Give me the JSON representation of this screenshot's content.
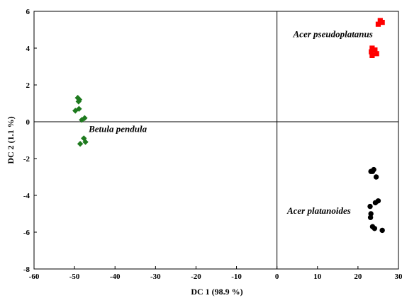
{
  "chart_data": {
    "type": "scatter",
    "xlabel": "DC 1 (98.9 %)",
    "ylabel": "DC 2 (1.1 %)",
    "xlim": [
      -60,
      30
    ],
    "ylim": [
      -8,
      6
    ],
    "xticks": [
      -60,
      -50,
      -40,
      -30,
      -20,
      -10,
      0,
      10,
      20,
      30
    ],
    "yticks": [
      -8,
      -6,
      -4,
      -2,
      0,
      2,
      4,
      6
    ],
    "grid": false,
    "reference_lines": {
      "x": 0,
      "y": 0
    },
    "series": [
      {
        "name": "Betula pendula",
        "marker": "diamond",
        "color": "#1e7a1e",
        "points": [
          [
            -49.2,
            1.3
          ],
          [
            -48.8,
            1.2
          ],
          [
            -49.0,
            1.1
          ],
          [
            -48.9,
            0.7
          ],
          [
            -49.8,
            0.6
          ],
          [
            -47.5,
            0.2
          ],
          [
            -48.2,
            0.1
          ],
          [
            -47.7,
            -0.9
          ],
          [
            -47.3,
            -1.1
          ],
          [
            -48.6,
            -1.2
          ]
        ]
      },
      {
        "name": "Acer pseudoplatanus",
        "marker": "square",
        "color": "#ff0000",
        "points": [
          [
            25.5,
            5.5
          ],
          [
            26.0,
            5.4
          ],
          [
            25.0,
            5.3
          ],
          [
            23.5,
            4.0
          ],
          [
            24.2,
            3.9
          ],
          [
            23.3,
            3.8
          ],
          [
            24.6,
            3.7
          ],
          [
            23.5,
            3.6
          ]
        ]
      },
      {
        "name": "Acer platanoides",
        "marker": "circle",
        "color": "#000000",
        "points": [
          [
            23.2,
            -2.7
          ],
          [
            23.9,
            -2.6
          ],
          [
            23.6,
            -2.7
          ],
          [
            24.5,
            -3.0
          ],
          [
            25.0,
            -4.3
          ],
          [
            24.3,
            -4.4
          ],
          [
            23.0,
            -4.6
          ],
          [
            23.2,
            -5.0
          ],
          [
            23.1,
            -5.2
          ],
          [
            23.6,
            -5.7
          ],
          [
            24.1,
            -5.8
          ],
          [
            26.0,
            -5.9
          ]
        ]
      }
    ],
    "labels": [
      {
        "text": "Betula pendula",
        "x": -46.5,
        "y": -0.55
      },
      {
        "text": "Acer pseudoplatanus",
        "x": 4,
        "y": 4.6
      },
      {
        "text": "Acer platanoides",
        "x": 2.5,
        "y": -5.0
      }
    ]
  }
}
